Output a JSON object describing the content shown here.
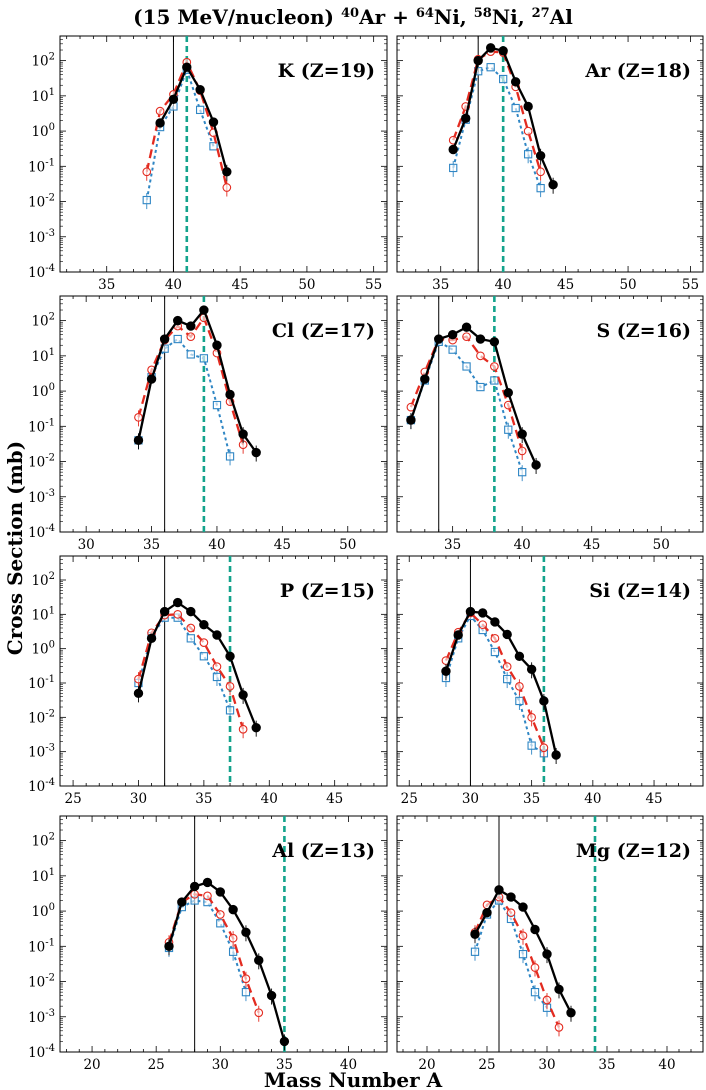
{
  "figure": {
    "title_prefix": "(15 MeV/nucleon) ",
    "title_parts": [
      {
        "sup": "40",
        "el": "Ar",
        "sep": " + "
      },
      {
        "sup": "64",
        "el": "Ni",
        "sep": ", "
      },
      {
        "sup": "58",
        "el": "Ni",
        "sep": ", "
      },
      {
        "sup": "27",
        "el": "Al",
        "sep": ""
      }
    ],
    "ylabel": "Cross Section (mb)",
    "xlabel": "Mass Number A"
  },
  "colors": {
    "Ni64": "#000000",
    "Ni58": "#e32b20",
    "Al27": "#2f86c4",
    "projectile_line": "#000000",
    "dashed_line": "#13a38c"
  },
  "chart_data": [
    {
      "type": "line",
      "yscale": "log",
      "label": "K (Z=19)",
      "xlim": [
        31.5,
        56
      ],
      "ylim": [
        0.0001,
        500
      ],
      "xticks": [
        35,
        40,
        45,
        50,
        55
      ],
      "yticks": [
        {
          "v": 0.0001,
          "e": "-4"
        },
        {
          "v": 0.001,
          "e": "-3"
        },
        {
          "v": 0.01,
          "e": "-2"
        },
        {
          "v": 0.1,
          "e": "-1"
        },
        {
          "v": 1,
          "e": "0"
        },
        {
          "v": 10,
          "e": "1"
        },
        {
          "v": 100,
          "e": "2"
        }
      ],
      "vline_solid": 40,
      "vline_dashed": 41,
      "series": [
        {
          "name": "64Ni",
          "x": [
            39,
            40,
            41,
            42,
            43,
            44
          ],
          "y": [
            1.7,
            8,
            65,
            15,
            1.8,
            0.07
          ]
        },
        {
          "name": "58Ni",
          "x": [
            38,
            39,
            40,
            41,
            42,
            43,
            44
          ],
          "y": [
            0.07,
            3.7,
            11,
            90,
            14,
            0.9,
            0.025
          ]
        },
        {
          "name": "27Al",
          "x": [
            38,
            39,
            40,
            41,
            42,
            43
          ],
          "y": [
            0.011,
            1.3,
            5,
            55,
            4,
            0.37
          ]
        }
      ]
    },
    {
      "type": "line",
      "yscale": "log",
      "label": "Ar (Z=18)",
      "xlim": [
        31.5,
        56
      ],
      "ylim": [
        0.0001,
        500
      ],
      "xticks": [
        35,
        40,
        45,
        50,
        55
      ],
      "yticks": [
        {
          "v": 0.0001,
          "e": "-4"
        },
        {
          "v": 0.001,
          "e": "-3"
        },
        {
          "v": 0.01,
          "e": "-2"
        },
        {
          "v": 0.1,
          "e": "-1"
        },
        {
          "v": 1,
          "e": "0"
        },
        {
          "v": 10,
          "e": "1"
        },
        {
          "v": 100,
          "e": "2"
        }
      ],
      "vline_solid": 38,
      "vline_dashed": 40,
      "series": [
        {
          "name": "64Ni",
          "x": [
            36,
            37,
            38,
            39,
            40,
            41,
            42,
            43,
            44
          ],
          "y": [
            0.3,
            2.3,
            100,
            230,
            190,
            25,
            5,
            0.2,
            0.03
          ]
        },
        {
          "name": "58Ni",
          "x": [
            36,
            37,
            38,
            39,
            40,
            41,
            42,
            43
          ],
          "y": [
            0.55,
            5,
            110,
            180,
            170,
            18,
            1,
            0.07
          ]
        },
        {
          "name": "27Al",
          "x": [
            36,
            37,
            38,
            39,
            40,
            41,
            42,
            43
          ],
          "y": [
            0.09,
            2.1,
            50,
            65,
            30,
            4.5,
            0.22,
            0.024
          ]
        }
      ]
    },
    {
      "type": "line",
      "yscale": "log",
      "label": "Cl (Z=17)",
      "xlim": [
        28,
        53
      ],
      "ylim": [
        0.0001,
        500
      ],
      "xticks": [
        30,
        35,
        40,
        45,
        50
      ],
      "yticks": [
        {
          "v": 0.0001,
          "e": "-4"
        },
        {
          "v": 0.001,
          "e": "-3"
        },
        {
          "v": 0.01,
          "e": "-2"
        },
        {
          "v": 0.1,
          "e": "-1"
        },
        {
          "v": 1,
          "e": "0"
        },
        {
          "v": 10,
          "e": "1"
        },
        {
          "v": 100,
          "e": "2"
        }
      ],
      "vline_solid": 36,
      "vline_dashed": 39,
      "series": [
        {
          "name": "64Ni",
          "x": [
            34,
            35,
            36,
            37,
            38,
            39,
            40,
            41,
            42,
            43
          ],
          "y": [
            0.04,
            2.2,
            30,
            100,
            70,
            200,
            20,
            0.8,
            0.06,
            0.018
          ]
        },
        {
          "name": "58Ni",
          "x": [
            34,
            35,
            36,
            37,
            38,
            39,
            40,
            41,
            42
          ],
          "y": [
            0.18,
            4,
            28,
            70,
            35,
            120,
            12,
            0.5,
            0.03
          ]
        },
        {
          "name": "27Al",
          "x": [
            34,
            35,
            36,
            37,
            38,
            39,
            40,
            41
          ],
          "y": [
            0.04,
            2.5,
            16,
            30,
            11,
            8.5,
            0.4,
            0.014
          ]
        }
      ]
    },
    {
      "type": "line",
      "yscale": "log",
      "label": "S (Z=16)",
      "xlim": [
        31,
        53
      ],
      "ylim": [
        0.0001,
        500
      ],
      "xticks": [
        35,
        40,
        45,
        50
      ],
      "yticks": [
        {
          "v": 0.0001,
          "e": "-4"
        },
        {
          "v": 0.001,
          "e": "-3"
        },
        {
          "v": 0.01,
          "e": "-2"
        },
        {
          "v": 0.1,
          "e": "-1"
        },
        {
          "v": 1,
          "e": "0"
        },
        {
          "v": 10,
          "e": "1"
        },
        {
          "v": 100,
          "e": "2"
        }
      ],
      "vline_solid": 34,
      "vline_dashed": 38,
      "series": [
        {
          "name": "64Ni",
          "x": [
            32,
            33,
            34,
            35,
            36,
            37,
            38,
            39,
            40,
            41
          ],
          "y": [
            0.15,
            2.2,
            30,
            40,
            65,
            30,
            25,
            0.9,
            0.06,
            0.008
          ]
        },
        {
          "name": "58Ni",
          "x": [
            32,
            33,
            34,
            35,
            36,
            37,
            38,
            39,
            40
          ],
          "y": [
            0.35,
            3.5,
            30,
            28,
            35,
            10,
            5,
            0.4,
            0.02
          ]
        },
        {
          "name": "27Al",
          "x": [
            32,
            33,
            34,
            35,
            36,
            37,
            38,
            39,
            40
          ],
          "y": [
            0.15,
            2,
            25,
            15,
            5,
            1.3,
            2,
            0.08,
            0.005
          ]
        }
      ]
    },
    {
      "type": "line",
      "yscale": "log",
      "label": "P (Z=15)",
      "xlim": [
        24,
        49
      ],
      "ylim": [
        0.0001,
        500
      ],
      "xticks": [
        25,
        30,
        35,
        40,
        45
      ],
      "yticks": [
        {
          "v": 0.0001,
          "e": "-4"
        },
        {
          "v": 0.001,
          "e": "-3"
        },
        {
          "v": 0.01,
          "e": "-2"
        },
        {
          "v": 0.1,
          "e": "-1"
        },
        {
          "v": 1,
          "e": "0"
        },
        {
          "v": 10,
          "e": "1"
        },
        {
          "v": 100,
          "e": "2"
        }
      ],
      "vline_solid": 32,
      "vline_dashed": 37,
      "series": [
        {
          "name": "64Ni",
          "x": [
            30,
            31,
            32,
            33,
            34,
            35,
            36,
            37,
            38,
            39
          ],
          "y": [
            0.05,
            2,
            12,
            22,
            12,
            5,
            2.5,
            0.6,
            0.045,
            0.005
          ]
        },
        {
          "name": "58Ni",
          "x": [
            30,
            31,
            32,
            33,
            34,
            35,
            36,
            37,
            38
          ],
          "y": [
            0.13,
            2.9,
            9.5,
            10,
            4,
            1.5,
            0.3,
            0.08,
            0.0045
          ]
        },
        {
          "name": "27Al",
          "x": [
            30,
            31,
            32,
            33,
            34,
            35,
            36,
            37
          ],
          "y": [
            0.1,
            2.3,
            8,
            8,
            2,
            0.6,
            0.15,
            0.016
          ]
        }
      ]
    },
    {
      "type": "line",
      "yscale": "log",
      "label": "Si (Z=14)",
      "xlim": [
        24,
        49
      ],
      "ylim": [
        0.0001,
        500
      ],
      "xticks": [
        25,
        30,
        35,
        40,
        45
      ],
      "yticks": [
        {
          "v": 0.0001,
          "e": "-4"
        },
        {
          "v": 0.001,
          "e": "-3"
        },
        {
          "v": 0.01,
          "e": "-2"
        },
        {
          "v": 0.1,
          "e": "-1"
        },
        {
          "v": 1,
          "e": "0"
        },
        {
          "v": 10,
          "e": "1"
        },
        {
          "v": 100,
          "e": "2"
        }
      ],
      "vline_solid": 30,
      "vline_dashed": 36,
      "series": [
        {
          "name": "64Ni",
          "x": [
            28,
            29,
            30,
            31,
            32,
            33,
            34,
            35,
            36,
            37
          ],
          "y": [
            0.22,
            2.5,
            12,
            11,
            6,
            2.6,
            0.6,
            0.25,
            0.03,
            0.0008
          ]
        },
        {
          "name": "58Ni",
          "x": [
            28,
            29,
            30,
            31,
            32,
            33,
            34,
            35,
            36
          ],
          "y": [
            0.45,
            3,
            11,
            5,
            2,
            0.3,
            0.08,
            0.01,
            0.0013
          ]
        },
        {
          "name": "27Al",
          "x": [
            28,
            29,
            30,
            31,
            32,
            33,
            34,
            35,
            36
          ],
          "y": [
            0.14,
            2,
            9,
            3.5,
            0.8,
            0.13,
            0.03,
            0.0015,
            0.0009
          ]
        }
      ]
    },
    {
      "type": "line",
      "yscale": "log",
      "label": "Al (Z=13)",
      "xlim": [
        17.5,
        43
      ],
      "ylim": [
        0.0001,
        500
      ],
      "xticks": [
        20,
        25,
        30,
        35,
        40
      ],
      "yticks": [
        {
          "v": 0.0001,
          "e": "-4"
        },
        {
          "v": 0.001,
          "e": "-3"
        },
        {
          "v": 0.01,
          "e": "-2"
        },
        {
          "v": 0.1,
          "e": "-1"
        },
        {
          "v": 1,
          "e": "0"
        },
        {
          "v": 10,
          "e": "1"
        },
        {
          "v": 100,
          "e": "2"
        }
      ],
      "vline_solid": 28,
      "vline_dashed": 35,
      "series": [
        {
          "name": "64Ni",
          "x": [
            26,
            27,
            28,
            29,
            30,
            31,
            32,
            33,
            34,
            35
          ],
          "y": [
            0.1,
            1.8,
            5,
            6.5,
            3.5,
            1.1,
            0.25,
            0.04,
            0.004,
            0.0002
          ]
        },
        {
          "name": "58Ni",
          "x": [
            26,
            27,
            28,
            29,
            30,
            31,
            32,
            33
          ],
          "y": [
            0.13,
            1.8,
            3,
            2.7,
            0.8,
            0.17,
            0.012,
            0.0013
          ]
        },
        {
          "name": "27Al",
          "x": [
            26,
            27,
            28,
            29,
            30,
            31,
            32
          ],
          "y": [
            0.09,
            1.3,
            2,
            1.8,
            0.45,
            0.07,
            0.005
          ]
        }
      ]
    },
    {
      "type": "line",
      "yscale": "log",
      "label": "Mg (Z=12)",
      "xlim": [
        17.5,
        43
      ],
      "ylim": [
        0.0001,
        500
      ],
      "xticks": [
        20,
        25,
        30,
        35,
        40
      ],
      "yticks": [
        {
          "v": 0.0001,
          "e": "-4"
        },
        {
          "v": 0.001,
          "e": "-3"
        },
        {
          "v": 0.01,
          "e": "-2"
        },
        {
          "v": 0.1,
          "e": "-1"
        },
        {
          "v": 1,
          "e": "0"
        },
        {
          "v": 10,
          "e": "1"
        },
        {
          "v": 100,
          "e": "2"
        }
      ],
      "vline_solid": 26,
      "vline_dashed": 34,
      "series": [
        {
          "name": "64Ni",
          "x": [
            24,
            25,
            26,
            27,
            28,
            29,
            30,
            31,
            32
          ],
          "y": [
            0.22,
            0.9,
            4,
            2.5,
            1.3,
            0.3,
            0.06,
            0.006,
            0.0013
          ]
        },
        {
          "name": "58Ni",
          "x": [
            24,
            25,
            26,
            27,
            28,
            29,
            30,
            31
          ],
          "y": [
            0.25,
            1.5,
            2.5,
            0.9,
            0.2,
            0.025,
            0.003,
            0.0005
          ]
        },
        {
          "name": "27Al",
          "x": [
            24,
            25,
            26,
            27,
            28,
            29,
            30
          ],
          "y": [
            0.07,
            0.8,
            2,
            0.6,
            0.06,
            0.005,
            0.0018
          ]
        }
      ]
    }
  ]
}
